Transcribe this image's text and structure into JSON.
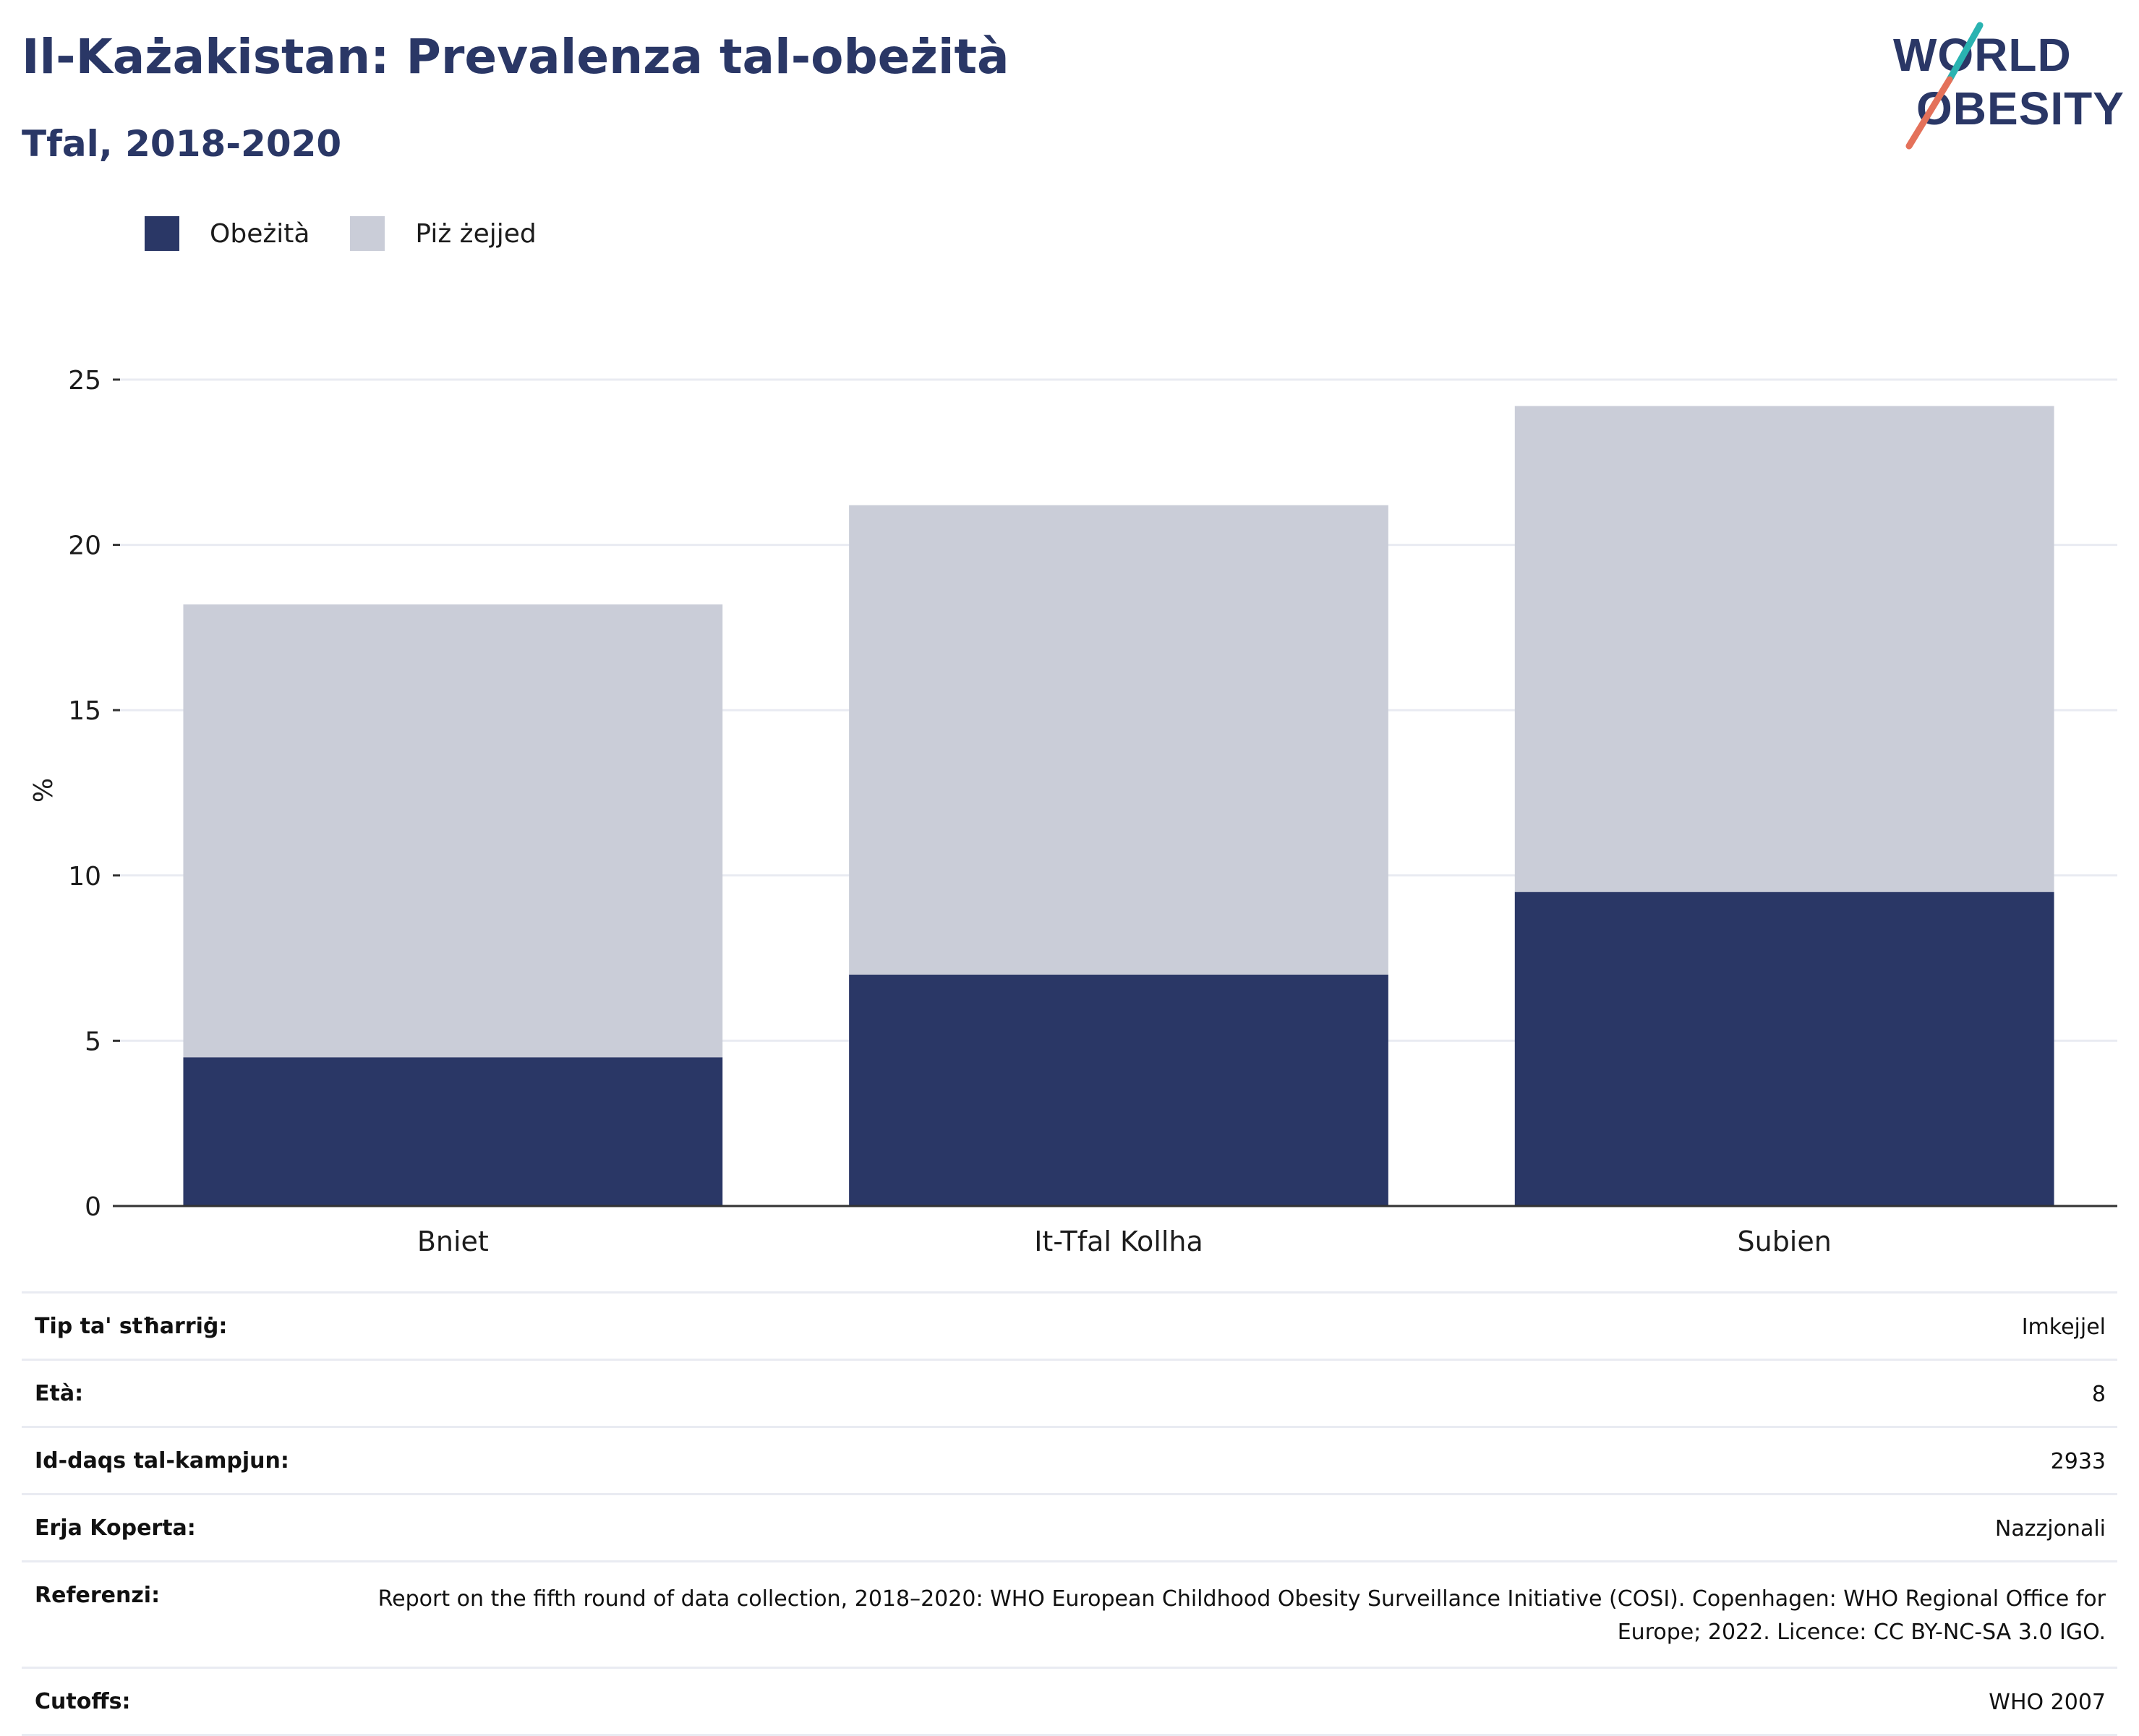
{
  "header": {
    "title": "Il-Każakistan: Prevalenza tal-obeżità",
    "subtitle": "Tfal, 2018-2020"
  },
  "logo": {
    "line1": "WORLD",
    "line2": "OBESITY",
    "accent_teal": "#2ab3b1",
    "accent_coral": "#e4715a",
    "text_color": "#2a3766"
  },
  "legend": [
    {
      "label": "Obeżità",
      "color": "#2a3766"
    },
    {
      "label": "Piż żejjed",
      "color": "#cacdd8"
    }
  ],
  "chart_data": {
    "type": "bar",
    "stacked": true,
    "categories": [
      "Bniet",
      "It-Tfal Kollha",
      "Subien"
    ],
    "series": [
      {
        "name": "Obeżità",
        "color": "#2a3766",
        "values": [
          4.5,
          7.0,
          9.5
        ]
      },
      {
        "name": "Piż żejjed",
        "color": "#cacdd8",
        "values": [
          13.7,
          14.2,
          14.7
        ]
      }
    ],
    "ylabel": "%",
    "ylim": [
      0,
      25
    ],
    "yticks": [
      0,
      5,
      10,
      15,
      20,
      25
    ],
    "grid": true,
    "legend_position": "top-left"
  },
  "meta": {
    "rows": [
      {
        "label": "Tip ta' stħarriġ:",
        "value": "Imkejjel"
      },
      {
        "label": "Età:",
        "value": "8"
      },
      {
        "label": "Id-daqs tal-kampjun:",
        "value": "2933"
      },
      {
        "label": "Erja Koperta:",
        "value": "Nazzjonali"
      },
      {
        "label": "Referenzi:",
        "value": "Report on the fifth round of data collection, 2018–2020: WHO European Childhood Obesity Surveillance Initiative (COSI). Copenhagen: WHO Regional Office for Europe; 2022. Licence: CC BY-NC-SA 3.0 IGO."
      },
      {
        "label": "Cutoffs:",
        "value": "WHO 2007"
      }
    ]
  }
}
